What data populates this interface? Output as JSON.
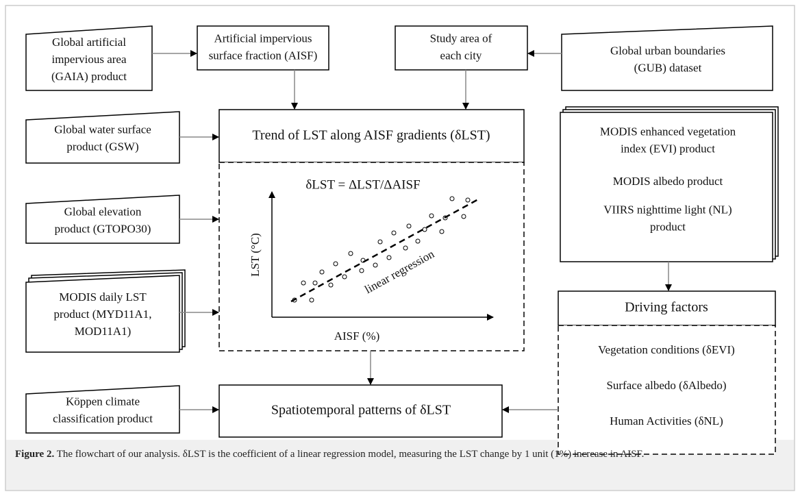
{
  "nodes": [
    {
      "lines": [
        "Global artificial",
        "impervious area",
        "(GAIA) product"
      ]
    },
    {
      "lines": [
        "Artificial impervious",
        "surface fraction (AISF)"
      ]
    },
    {
      "lines": [
        "Study area of",
        "each city"
      ]
    },
    {
      "lines": [
        "Global urban boundaries",
        "(GUB) dataset"
      ]
    },
    {
      "lines": [
        "Trend of LST along AISF gradients (δLST)"
      ]
    },
    {
      "lines": [
        "Global water surface",
        "product (GSW)"
      ]
    },
    {
      "lines": [
        "Global elevation",
        "product (GTOPO30)"
      ]
    },
    {
      "lines": [
        "MODIS daily LST",
        "product (MYD11A1,",
        "MOD11A1)"
      ]
    },
    {
      "lines": [
        "MODIS enhanced vegetation",
        "index (EVI) product"
      ]
    },
    {
      "lines": [
        "MODIS albedo product"
      ]
    },
    {
      "lines": [
        "VIIRS nighttime light (NL)",
        "product"
      ]
    },
    {
      "lines": [
        "Driving factors"
      ]
    },
    {
      "lines": [
        "Vegetation conditions (δEVI)"
      ]
    },
    {
      "lines": [
        "Surface albedo (δAlbedo)"
      ]
    },
    {
      "lines": [
        "Human Activities (δNL)"
      ]
    },
    {
      "lines": [
        "Spatiotemporal patterns of δLST"
      ]
    },
    {
      "lines": [
        "Köppen climate",
        "classification product"
      ]
    }
  ],
  "scatter": {
    "title": "δLST = ΔLST/ΔAISF",
    "y_label": "LST (°C)",
    "x_label": "AISF (%)",
    "line_label": "linear regression"
  },
  "caption": {
    "label": "Figure 2.",
    "text": " The flowchart of our analysis. δLST is the coefficient of a linear regression model, measuring the LST change by 1 unit (1%) increase in AISF."
  }
}
